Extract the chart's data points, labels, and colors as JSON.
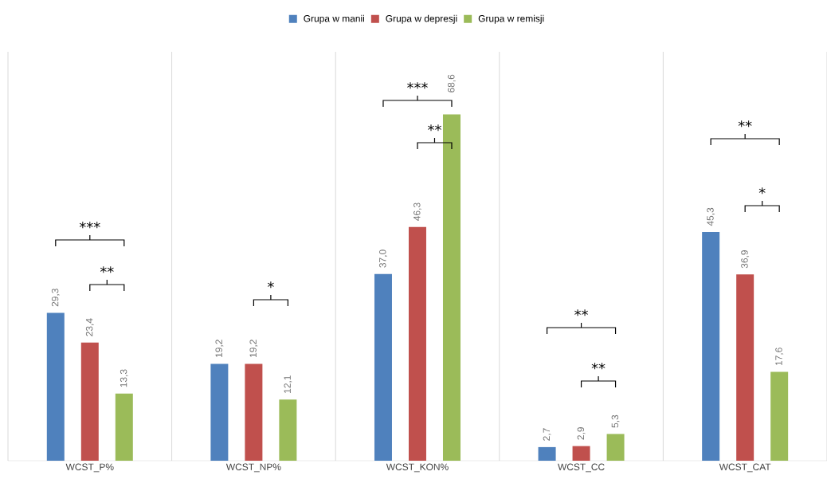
{
  "chart_data": {
    "type": "bar",
    "categories": [
      "WCST_P%",
      "WCST_NP%",
      "WCST_KON%",
      "WCST_CC",
      "WCST_CAT"
    ],
    "series": [
      {
        "name": "Grupa w manii",
        "color": "#4f81bd",
        "values": [
          29.3,
          19.2,
          37.0,
          2.7,
          45.3
        ],
        "value_labels": [
          "29,3",
          "19,2",
          "37,0",
          "2,7",
          "45,3"
        ]
      },
      {
        "name": "Grupa w depresji",
        "color": "#c0504d",
        "values": [
          23.4,
          19.2,
          46.3,
          2.9,
          36.9
        ],
        "value_labels": [
          "23,4",
          "19,2",
          "46,3",
          "2,9",
          "36,9"
        ]
      },
      {
        "name": "Grupa w remisji",
        "color": "#9bbb59",
        "values": [
          13.3,
          12.1,
          68.6,
          5.3,
          17.6
        ],
        "value_labels": [
          "13,3",
          "12,1",
          "68,6",
          "5,3",
          "17,6"
        ]
      }
    ],
    "ylim": [
      0,
      81
    ],
    "grid": "x",
    "legend": "top",
    "annotations": [
      "***",
      "**",
      "*",
      "***",
      "**",
      "**",
      "**",
      "**",
      "*"
    ]
  }
}
